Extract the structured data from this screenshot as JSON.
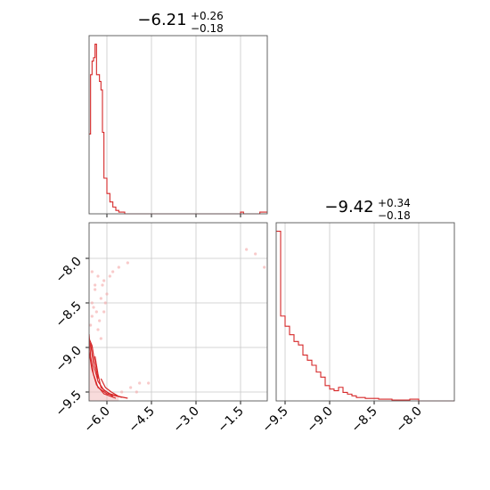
{
  "chart_data": [
    {
      "type": "histogram",
      "panel": "top-left",
      "title": {
        "main": "−6.21",
        "sup": "+0.26",
        "sub": "−0.18"
      },
      "xlim": [
        -6.6,
        -0.6
      ],
      "xticks": [
        -6.0,
        -4.5,
        -3.0,
        -1.5
      ],
      "grid": true,
      "color": "#d62728",
      "bins": [
        {
          "x0": -6.6,
          "x1": -6.55,
          "y": 0.47
        },
        {
          "x0": -6.55,
          "x1": -6.5,
          "y": 0.82
        },
        {
          "x0": -6.5,
          "x1": -6.45,
          "y": 0.9
        },
        {
          "x0": -6.45,
          "x1": -6.4,
          "y": 0.92
        },
        {
          "x0": -6.4,
          "x1": -6.35,
          "y": 1.0
        },
        {
          "x0": -6.35,
          "x1": -6.3,
          "y": 0.82
        },
        {
          "x0": -6.3,
          "x1": -6.25,
          "y": 0.82
        },
        {
          "x0": -6.25,
          "x1": -6.2,
          "y": 0.78
        },
        {
          "x0": -6.2,
          "x1": -6.15,
          "y": 0.73
        },
        {
          "x0": -6.15,
          "x1": -6.1,
          "y": 0.48
        },
        {
          "x0": -6.1,
          "x1": -6.0,
          "y": 0.21
        },
        {
          "x0": -6.0,
          "x1": -5.9,
          "y": 0.12
        },
        {
          "x0": -5.9,
          "x1": -5.8,
          "y": 0.07
        },
        {
          "x0": -5.8,
          "x1": -5.7,
          "y": 0.04
        },
        {
          "x0": -5.7,
          "x1": -5.6,
          "y": 0.02
        },
        {
          "x0": -5.6,
          "x1": -5.4,
          "y": 0.01
        },
        {
          "x0": -5.4,
          "x1": -1.5,
          "y": 0.0
        },
        {
          "x0": -1.5,
          "x1": -1.4,
          "y": 0.01
        },
        {
          "x0": -1.4,
          "x1": -0.85,
          "y": 0.0
        },
        {
          "x0": -0.85,
          "x1": -0.6,
          "y": 0.01
        }
      ]
    },
    {
      "type": "histogram",
      "panel": "bottom-right",
      "title": {
        "main": "−9.42",
        "sup": "+0.34",
        "sub": "−0.18"
      },
      "xlim": [
        -9.6,
        -7.6
      ],
      "xticks": [
        -9.5,
        -9.0,
        -8.5,
        -8.0
      ],
      "xticklabels": [
        "−9.5",
        "−9.0",
        "−8.5",
        "−8.0"
      ],
      "grid": true,
      "color": "#d62728",
      "bins": [
        {
          "x0": -9.6,
          "x1": -9.55,
          "y": 1.0
        },
        {
          "x0": -9.55,
          "x1": -9.5,
          "y": 0.5
        },
        {
          "x0": -9.5,
          "x1": -9.45,
          "y": 0.44
        },
        {
          "x0": -9.45,
          "x1": -9.4,
          "y": 0.39
        },
        {
          "x0": -9.4,
          "x1": -9.35,
          "y": 0.35
        },
        {
          "x0": -9.35,
          "x1": -9.3,
          "y": 0.33
        },
        {
          "x0": -9.3,
          "x1": -9.25,
          "y": 0.27
        },
        {
          "x0": -9.25,
          "x1": -9.2,
          "y": 0.24
        },
        {
          "x0": -9.2,
          "x1": -9.15,
          "y": 0.21
        },
        {
          "x0": -9.15,
          "x1": -9.1,
          "y": 0.17
        },
        {
          "x0": -9.1,
          "x1": -9.05,
          "y": 0.14
        },
        {
          "x0": -9.05,
          "x1": -9.0,
          "y": 0.09
        },
        {
          "x0": -9.0,
          "x1": -8.95,
          "y": 0.07
        },
        {
          "x0": -8.95,
          "x1": -8.9,
          "y": 0.06
        },
        {
          "x0": -8.9,
          "x1": -8.85,
          "y": 0.08
        },
        {
          "x0": -8.85,
          "x1": -8.8,
          "y": 0.05
        },
        {
          "x0": -8.8,
          "x1": -8.75,
          "y": 0.04
        },
        {
          "x0": -8.75,
          "x1": -8.7,
          "y": 0.03
        },
        {
          "x0": -8.7,
          "x1": -8.6,
          "y": 0.02
        },
        {
          "x0": -8.6,
          "x1": -8.45,
          "y": 0.015
        },
        {
          "x0": -8.45,
          "x1": -8.3,
          "y": 0.01
        },
        {
          "x0": -8.3,
          "x1": -8.1,
          "y": 0.005
        },
        {
          "x0": -8.1,
          "x1": -8.0,
          "y": 0.01
        },
        {
          "x0": -8.0,
          "x1": -7.6,
          "y": 0.0
        }
      ]
    },
    {
      "type": "scatter",
      "panel": "bottom-left",
      "xlim": [
        -6.6,
        -0.6
      ],
      "ylim": [
        -9.6,
        -7.6
      ],
      "xticks": [
        -6.0,
        -4.5,
        -3.0,
        -1.5
      ],
      "xticklabels": [
        "−6.0",
        "−4.5",
        "−3.0",
        "−1.5"
      ],
      "yticks": [
        -8.0,
        -8.5,
        -9.0,
        -9.5
      ],
      "yticklabels": [
        "−8.0",
        "−8.5",
        "−9.0",
        "−9.5"
      ],
      "grid": true,
      "color": "#d62728",
      "contours": [
        [
          [
            -6.6,
            -8.85
          ],
          [
            -6.55,
            -9.1
          ],
          [
            -6.45,
            -9.3
          ],
          [
            -6.3,
            -9.45
          ],
          [
            -6.0,
            -9.52
          ],
          [
            -5.6,
            -9.55
          ]
        ],
        [
          [
            -6.6,
            -9.05
          ],
          [
            -6.5,
            -9.25
          ],
          [
            -6.35,
            -9.42
          ],
          [
            -6.1,
            -9.52
          ],
          [
            -5.7,
            -9.57
          ]
        ],
        [
          [
            -6.55,
            -8.95
          ],
          [
            -6.45,
            -9.2
          ],
          [
            -6.3,
            -9.38
          ],
          [
            -6.1,
            -9.48
          ],
          [
            -5.9,
            -9.52
          ],
          [
            -5.5,
            -9.56
          ]
        ],
        [
          [
            -6.4,
            -9.1
          ],
          [
            -6.3,
            -9.3
          ],
          [
            -6.2,
            -9.45
          ],
          [
            -6.0,
            -9.5
          ],
          [
            -5.8,
            -9.55
          ]
        ],
        [
          [
            -6.6,
            -8.9
          ],
          [
            -6.5,
            -8.98
          ],
          [
            -6.42,
            -9.15
          ],
          [
            -6.3,
            -9.35
          ]
        ],
        [
          [
            -6.2,
            -9.35
          ],
          [
            -6.05,
            -9.45
          ],
          [
            -5.85,
            -9.5
          ],
          [
            -5.6,
            -9.55
          ],
          [
            -5.3,
            -9.57
          ]
        ]
      ],
      "points": [
        [
          -6.5,
          -8.15
        ],
        [
          -6.3,
          -8.2
        ],
        [
          -6.1,
          -8.25
        ],
        [
          -6.4,
          -8.35
        ],
        [
          -6.2,
          -8.45
        ],
        [
          -6.45,
          -8.55
        ],
        [
          -6.35,
          -8.6
        ],
        [
          -6.25,
          -8.7
        ],
        [
          -6.55,
          -8.75
        ],
        [
          -6.15,
          -8.3
        ],
        [
          -5.9,
          -8.2
        ],
        [
          -5.6,
          -8.1
        ],
        [
          -5.3,
          -8.05
        ],
        [
          -6.0,
          -8.4
        ],
        [
          -6.1,
          -8.6
        ],
        [
          -1.3,
          -7.9
        ],
        [
          -1.0,
          -7.95
        ],
        [
          -0.7,
          -8.1
        ],
        [
          -5.2,
          -9.45
        ],
        [
          -4.9,
          -9.4
        ],
        [
          -5.5,
          -9.5
        ],
        [
          -6.2,
          -8.9
        ],
        [
          -6.4,
          -8.3
        ],
        [
          -6.5,
          -8.5
        ],
        [
          -6.3,
          -8.8
        ],
        [
          -5.8,
          -8.15
        ],
        [
          -6.05,
          -8.5
        ],
        [
          -6.5,
          -8.65
        ],
        [
          -4.6,
          -9.4
        ],
        [
          -5.0,
          -9.5
        ]
      ]
    }
  ]
}
